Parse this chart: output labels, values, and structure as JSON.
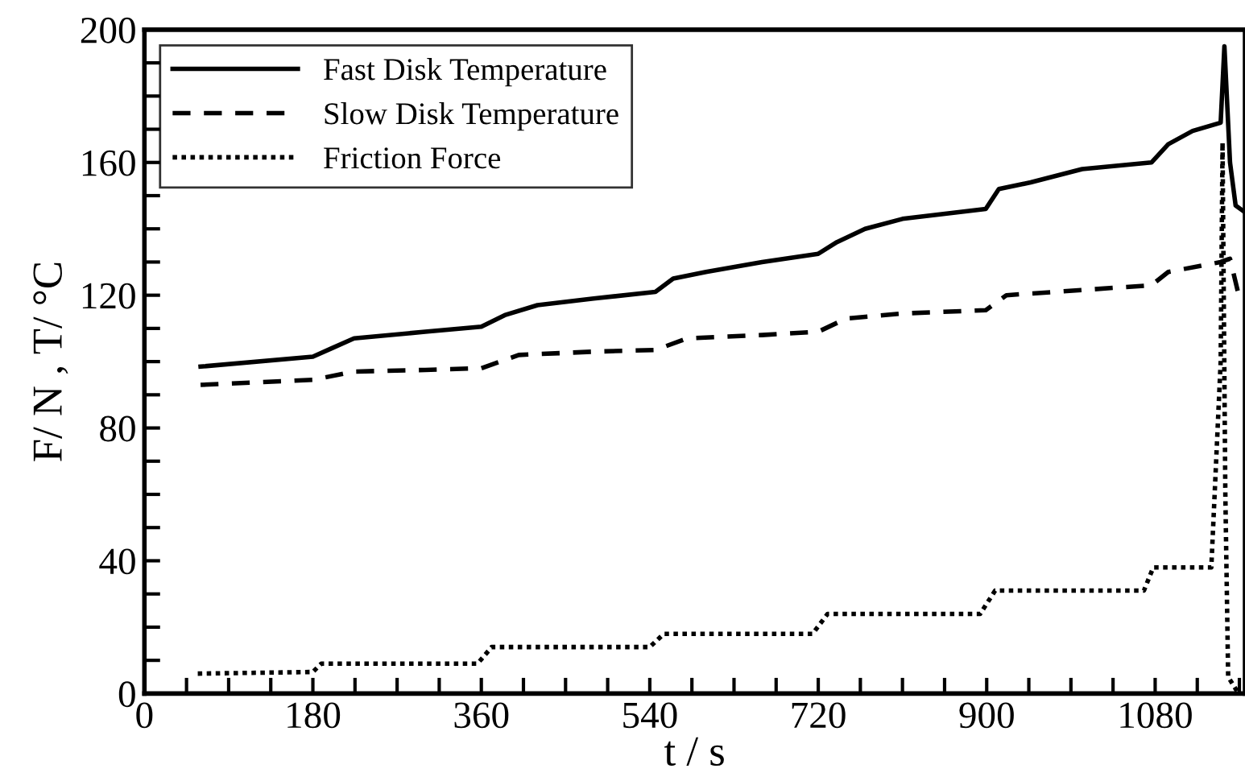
{
  "chart_data": {
    "type": "line",
    "xlabel": "t / s",
    "ylabel": "F/ N , T/ °C",
    "xlim": [
      0,
      1176
    ],
    "ylim": [
      0,
      200
    ],
    "xticks": [
      0,
      {
        "value": 45,
        "label": null
      },
      {
        "value": 90,
        "label": null
      },
      {
        "value": 135,
        "label": null
      },
      180,
      {
        "value": 225,
        "label": null
      },
      {
        "value": 270,
        "label": null
      },
      {
        "value": 315,
        "label": null
      },
      360,
      {
        "value": 405,
        "label": null
      },
      {
        "value": 450,
        "label": null
      },
      {
        "value": 495,
        "label": null
      },
      540,
      {
        "value": 585,
        "label": null
      },
      {
        "value": 630,
        "label": null
      },
      {
        "value": 675,
        "label": null
      },
      720,
      {
        "value": 765,
        "label": null
      },
      {
        "value": 810,
        "label": null
      },
      {
        "value": 855,
        "label": null
      },
      900,
      {
        "value": 945,
        "label": null
      },
      {
        "value": 990,
        "label": null
      },
      {
        "value": 1035,
        "label": null
      },
      1080,
      {
        "value": 1125,
        "label": null
      },
      {
        "value": 1170,
        "label": null
      }
    ],
    "yticks": [
      0,
      {
        "value": 10,
        "label": null
      },
      {
        "value": 20,
        "label": null
      },
      {
        "value": 30,
        "label": null
      },
      40,
      {
        "value": 50,
        "label": null
      },
      {
        "value": 60,
        "label": null
      },
      {
        "value": 70,
        "label": null
      },
      80,
      {
        "value": 90,
        "label": null
      },
      {
        "value": 100,
        "label": null
      },
      {
        "value": 110,
        "label": null
      },
      120,
      {
        "value": 130,
        "label": null
      },
      {
        "value": 140,
        "label": null
      },
      {
        "value": 150,
        "label": null
      },
      160,
      {
        "value": 170,
        "label": null
      },
      {
        "value": 180,
        "label": null
      },
      {
        "value": 190,
        "label": null
      },
      200
    ],
    "grid": false,
    "legend": "top left",
    "marker": "none",
    "series": [
      {
        "name": "Fast Disk Temperature",
        "color": "#000000",
        "line_style": "solid",
        "x": [
          60,
          180,
          200,
          224,
          300,
          360,
          385,
          420,
          480,
          546,
          565,
          600,
          660,
          720,
          740,
          770,
          810,
          899,
          913,
          947,
          1002,
          1076,
          1094,
          1120,
          1150,
          1154,
          1160,
          1166,
          1176
        ],
        "values": [
          98.5,
          101.5,
          104,
          107,
          109,
          110.5,
          114,
          117,
          119,
          121,
          125,
          127,
          130,
          132.5,
          136,
          140,
          143,
          146,
          152,
          154,
          158,
          160,
          165.5,
          169.5,
          172,
          195,
          160,
          147,
          145
        ]
      },
      {
        "name": "Slow Disk Temperature",
        "color": "#000000",
        "line_style": "dashed",
        "x": [
          60,
          180,
          224,
          300,
          360,
          400,
          480,
          546,
          580,
          660,
          720,
          750,
          810,
          899,
          921,
          1076,
          1094,
          1150,
          1160,
          1171
        ],
        "values": [
          93,
          94.5,
          97,
          97.5,
          98,
          102,
          103,
          103.5,
          107,
          108,
          109,
          113,
          114.5,
          115.5,
          120,
          123,
          127,
          130,
          131,
          118
        ]
      },
      {
        "name": "Friction Force",
        "color": "#000000",
        "line_style": "dotted",
        "x": [
          57,
          180,
          189,
          356,
          371,
          540,
          555,
          714,
          730,
          893,
          909,
          1068,
          1078,
          1140,
          1150,
          1152,
          1155,
          1158,
          1168
        ],
        "values": [
          6,
          6.5,
          9,
          9,
          14,
          14,
          18,
          18,
          24,
          24,
          31,
          31,
          38,
          38,
          100,
          166,
          60,
          5,
          0.5
        ]
      }
    ]
  }
}
